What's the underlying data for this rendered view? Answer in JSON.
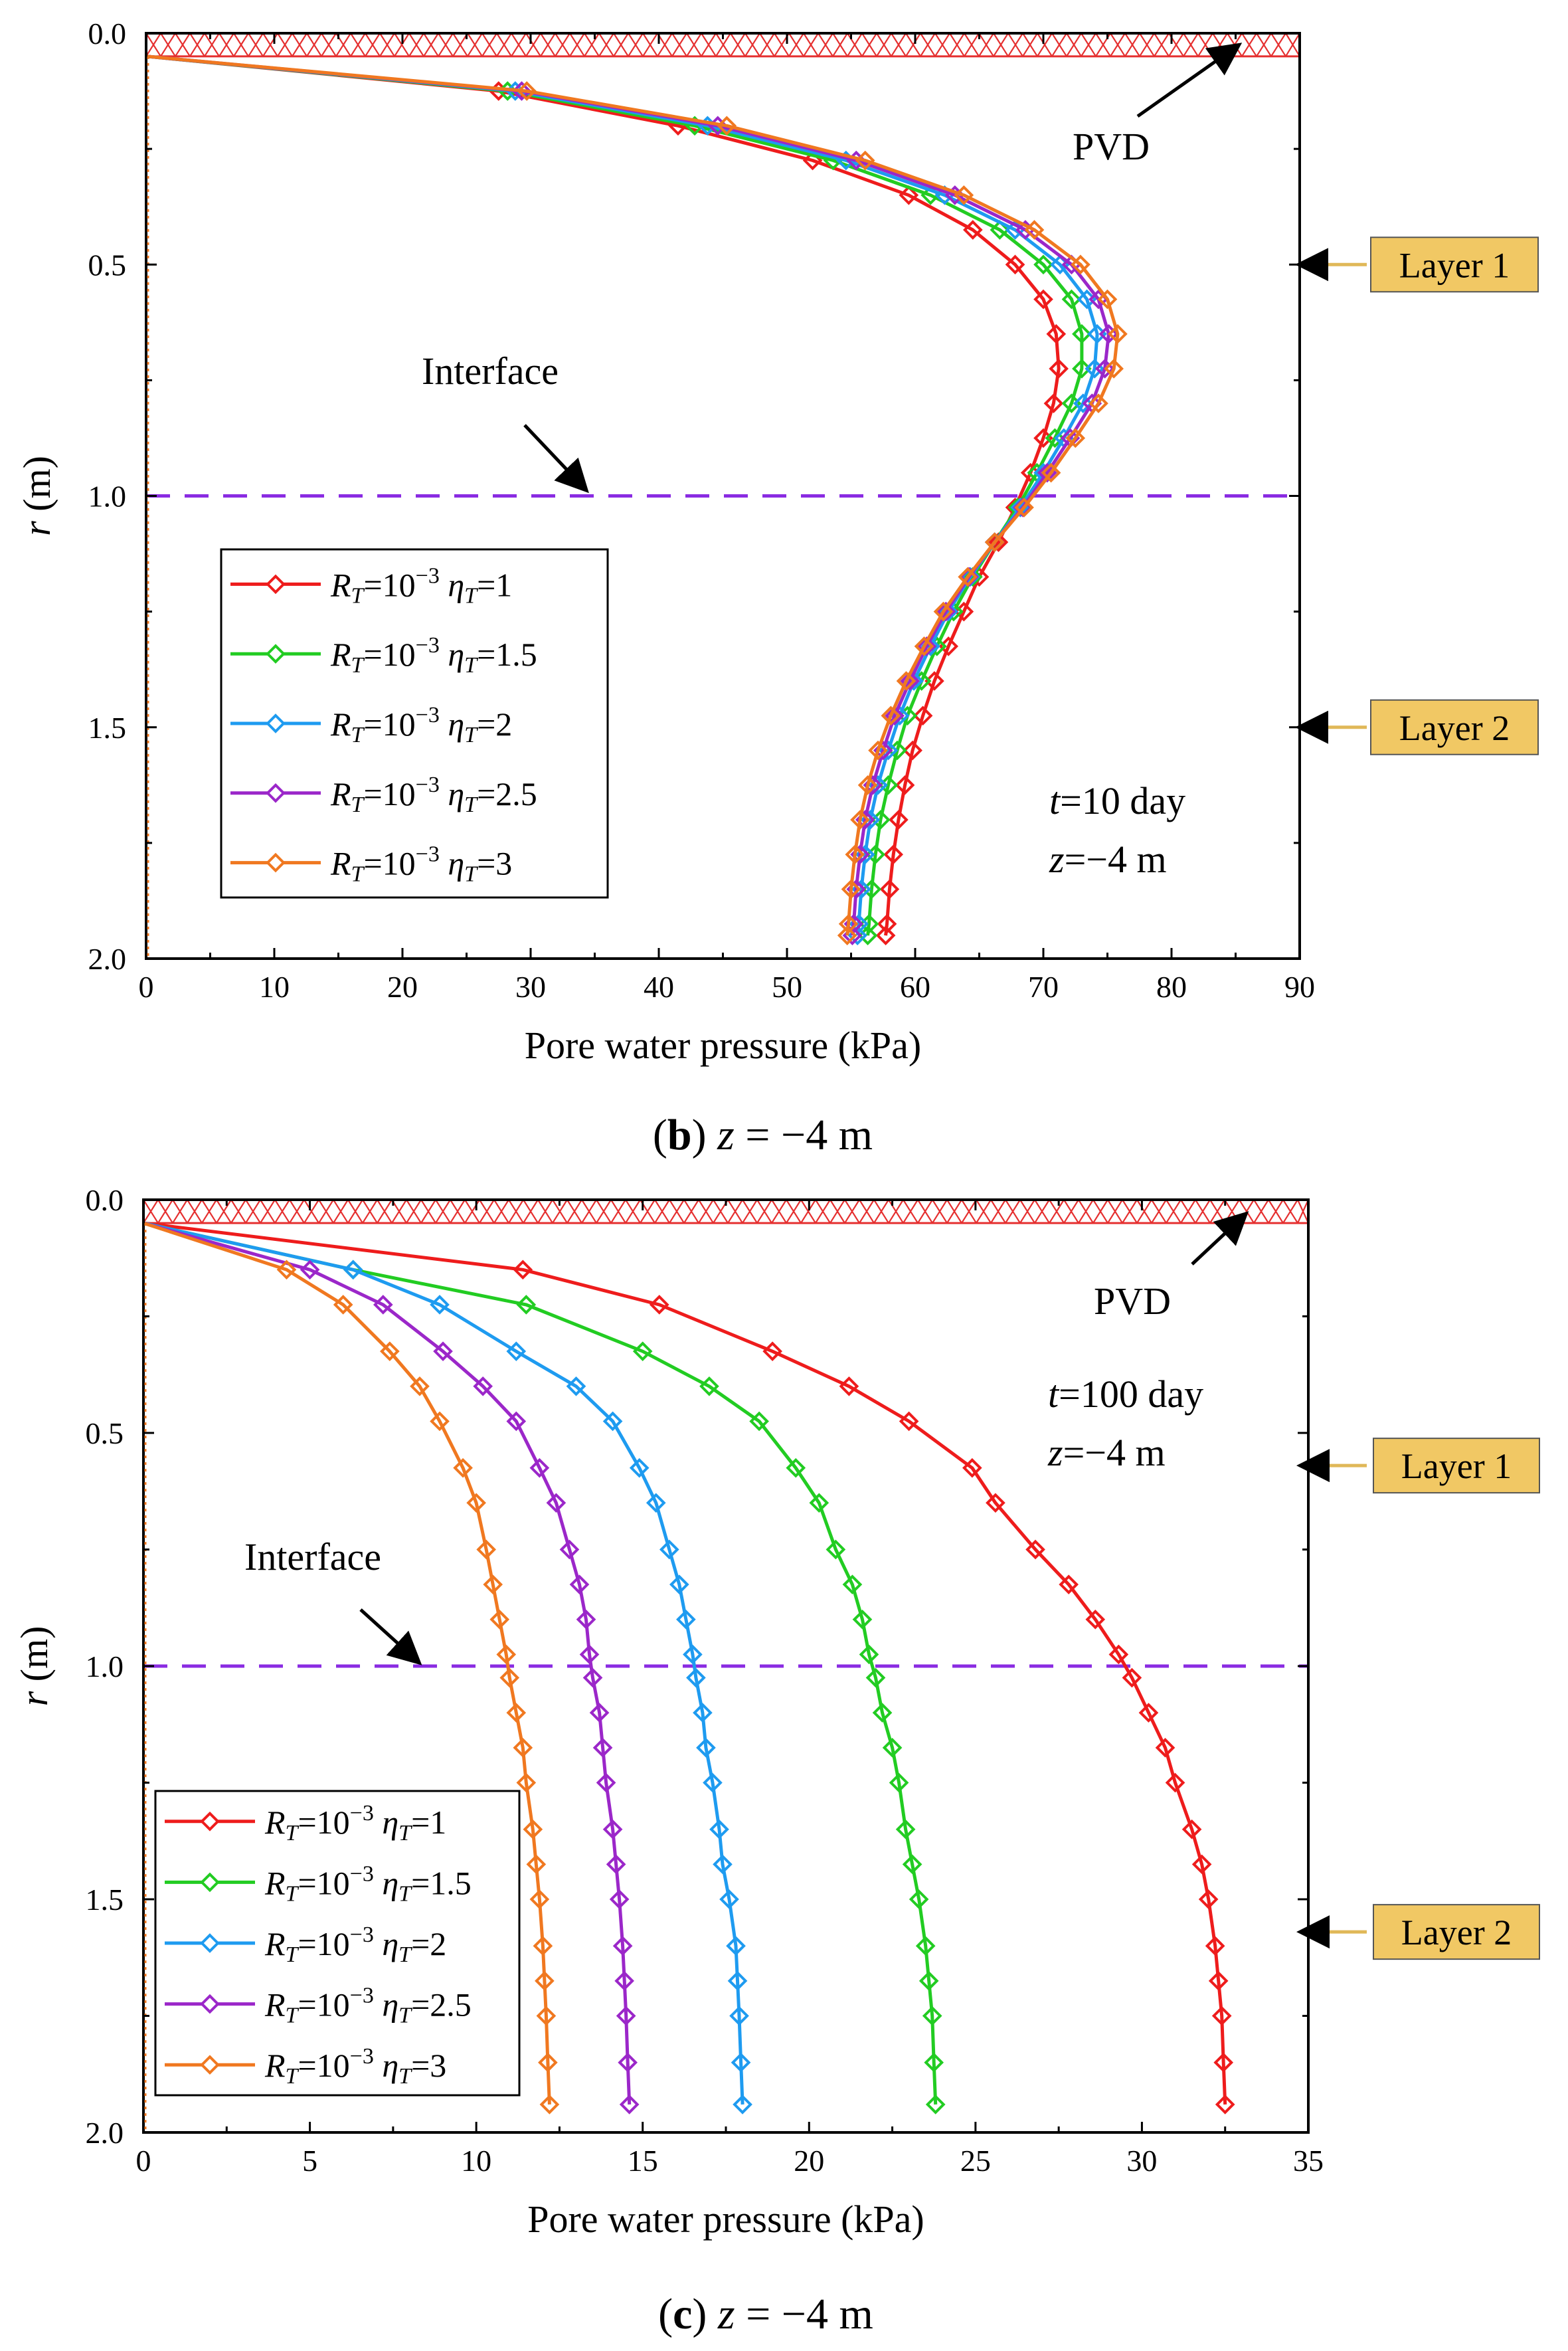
{
  "chart_data": [
    {
      "type": "line",
      "panel_label": "b",
      "caption_suffix": " z = −4 m",
      "xlabel": "Pore water pressure  (kPa)",
      "ylabel": "r (m)",
      "xlim": [
        0,
        90
      ],
      "ylim": [
        0,
        2.0
      ],
      "y_inverted": true,
      "xticks": [
        "0",
        "10",
        "20",
        "30",
        "40",
        "50",
        "60",
        "70",
        "80",
        "90"
      ],
      "yticks": [
        "0.0",
        "0.5",
        "1.0",
        "1.5",
        "2.0"
      ],
      "time_label": "t=10 day",
      "depth_label": "z=−4 m",
      "pvd_label": "PVD",
      "interface_label": "Interface",
      "interface_r": 1.0,
      "layer_labels": [
        {
          "text": "Layer 1",
          "r": 0.5
        },
        {
          "text": "Layer 2",
          "r": 1.5
        }
      ],
      "legend_position": "bottom-left",
      "r": [
        0.05,
        0.125,
        0.2,
        0.275,
        0.35,
        0.425,
        0.5,
        0.575,
        0.65,
        0.725,
        0.8,
        0.875,
        0.95,
        1.025,
        1.1,
        1.175,
        1.25,
        1.325,
        1.4,
        1.475,
        1.55,
        1.625,
        1.7,
        1.775,
        1.85,
        1.925,
        1.95
      ],
      "series": [
        {
          "name": "RT=10−3 ηT=1",
          "color": "#ee1c1c",
          "values": [
            0,
            27.5,
            41.5,
            52.0,
            59.5,
            64.5,
            67.8,
            70.0,
            71.0,
            71.2,
            70.8,
            70.0,
            69.0,
            67.8,
            66.5,
            65.0,
            63.8,
            62.6,
            61.5,
            60.6,
            59.8,
            59.2,
            58.7,
            58.3,
            58.0,
            57.8,
            57.7
          ]
        },
        {
          "name": "RT=10−3 ηT=1.5",
          "color": "#22cc22",
          "values": [
            0,
            28.2,
            42.8,
            53.6,
            61.2,
            66.6,
            70.0,
            72.2,
            73.0,
            73.0,
            72.2,
            70.9,
            69.5,
            68.0,
            66.2,
            64.5,
            63.0,
            61.7,
            60.5,
            59.4,
            58.6,
            57.9,
            57.3,
            56.9,
            56.6,
            56.4,
            56.3
          ]
        },
        {
          "name": "RT=10−3 ηT=2",
          "color": "#1e9bf0",
          "values": [
            0,
            28.8,
            43.8,
            54.6,
            62.3,
            67.8,
            71.3,
            73.4,
            74.2,
            74.0,
            73.1,
            71.6,
            70.0,
            68.2,
            66.2,
            64.3,
            62.6,
            61.2,
            59.9,
            58.8,
            57.9,
            57.1,
            56.5,
            56.1,
            55.8,
            55.6,
            55.5
          ]
        },
        {
          "name": "RT=10−3 ηT=2.5",
          "color": "#9b27c9",
          "values": [
            0,
            29.3,
            44.6,
            55.4,
            63.1,
            68.6,
            72.2,
            74.3,
            75.1,
            74.8,
            73.8,
            72.1,
            70.3,
            68.4,
            66.2,
            64.2,
            62.4,
            60.9,
            59.6,
            58.4,
            57.5,
            56.7,
            56.1,
            55.7,
            55.4,
            55.2,
            55.1
          ]
        },
        {
          "name": "RT=10−3 ηT=3",
          "color": "#f07820",
          "values": [
            0,
            29.7,
            45.3,
            56.1,
            63.8,
            69.3,
            72.9,
            75.0,
            75.8,
            75.5,
            74.3,
            72.5,
            70.6,
            68.5,
            66.2,
            64.1,
            62.2,
            60.7,
            59.3,
            58.1,
            57.1,
            56.3,
            55.7,
            55.3,
            55.0,
            54.8,
            54.7
          ]
        }
      ]
    },
    {
      "type": "line",
      "panel_label": "c",
      "caption_suffix": " z = −4 m",
      "xlabel": "Pore water pressure  (kPa)",
      "ylabel": "r (m)",
      "xlim": [
        0,
        35
      ],
      "ylim": [
        0,
        2.0
      ],
      "y_inverted": true,
      "xticks": [
        "0",
        "5",
        "10",
        "15",
        "20",
        "25",
        "30",
        "35"
      ],
      "yticks": [
        "0.0",
        "0.5",
        "1.0",
        "1.5",
        "2.0"
      ],
      "time_label": "t=100 day",
      "depth_label": "z=−4 m",
      "pvd_label": "PVD",
      "interface_label": "Interface",
      "interface_r": 1.0,
      "layer_labels": [
        {
          "text": "Layer 1",
          "r": 0.57
        },
        {
          "text": "Layer 2",
          "r": 1.57
        }
      ],
      "legend_position": "bottom-left",
      "r": [
        0.05,
        0.15,
        0.225,
        0.325,
        0.4,
        0.475,
        0.575,
        0.65,
        0.75,
        0.825,
        0.9,
        0.975,
        1.025,
        1.1,
        1.175,
        1.25,
        1.35,
        1.425,
        1.5,
        1.6,
        1.675,
        1.75,
        1.85,
        1.94
      ],
      "series": [
        {
          "name": "RT=10−3 ηT=1",
          "color": "#ee1c1c",
          "values": [
            0,
            11.4,
            15.5,
            18.9,
            21.2,
            23.0,
            24.9,
            25.6,
            26.8,
            27.8,
            28.6,
            29.3,
            29.7,
            30.2,
            30.7,
            31.0,
            31.5,
            31.8,
            32.0,
            32.2,
            32.3,
            32.4,
            32.45,
            32.5
          ]
        },
        {
          "name": "RT=10−3 ηT=1.5",
          "color": "#22cc22",
          "values": [
            0,
            6.3,
            11.5,
            15.0,
            17.0,
            18.5,
            19.6,
            20.3,
            20.8,
            21.3,
            21.6,
            21.8,
            22.0,
            22.2,
            22.5,
            22.7,
            22.9,
            23.1,
            23.3,
            23.5,
            23.6,
            23.7,
            23.75,
            23.8
          ]
        },
        {
          "name": "RT=10−3 ηT=2",
          "color": "#1e9bf0",
          "values": [
            0,
            6.3,
            8.9,
            11.2,
            13.0,
            14.1,
            14.9,
            15.4,
            15.8,
            16.1,
            16.3,
            16.5,
            16.6,
            16.8,
            16.9,
            17.1,
            17.3,
            17.4,
            17.6,
            17.8,
            17.85,
            17.9,
            17.95,
            18.0
          ]
        },
        {
          "name": "RT=10−3 ηT=2.5",
          "color": "#9b27c9",
          "values": [
            0,
            5.0,
            7.2,
            9.0,
            10.2,
            11.2,
            11.9,
            12.4,
            12.8,
            13.1,
            13.3,
            13.4,
            13.5,
            13.7,
            13.8,
            13.9,
            14.1,
            14.2,
            14.3,
            14.4,
            14.45,
            14.5,
            14.55,
            14.6
          ]
        },
        {
          "name": "RT=10−3 ηT=3",
          "color": "#f07820",
          "values": [
            0,
            4.3,
            6.0,
            7.4,
            8.3,
            8.9,
            9.6,
            10.0,
            10.3,
            10.5,
            10.7,
            10.9,
            11.0,
            11.2,
            11.4,
            11.5,
            11.7,
            11.8,
            11.9,
            12.0,
            12.05,
            12.1,
            12.15,
            12.2
          ]
        }
      ]
    }
  ]
}
